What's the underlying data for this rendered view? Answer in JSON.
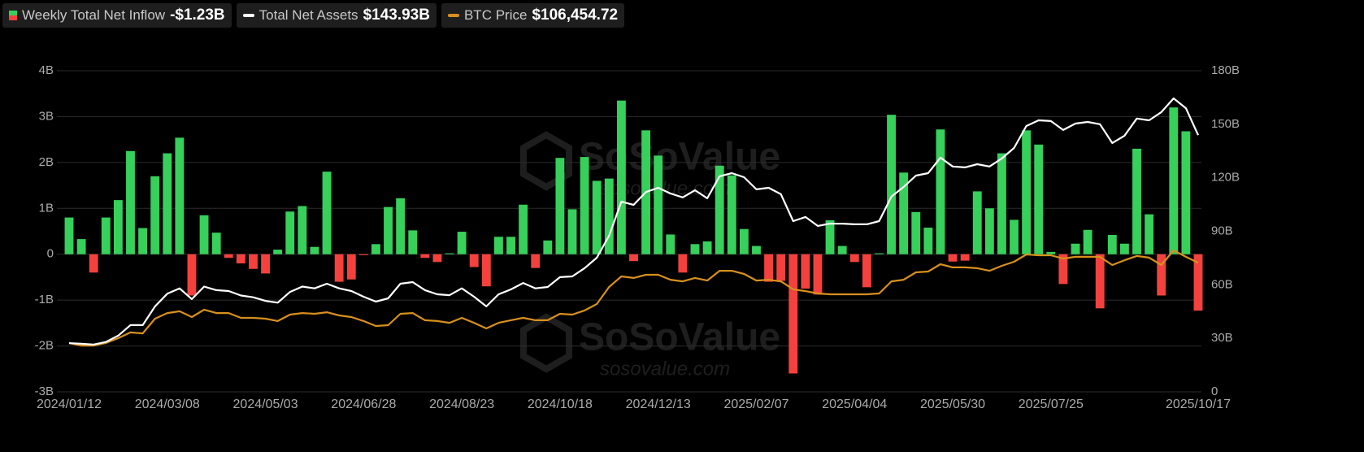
{
  "chart_data": {
    "type": "bar-line",
    "categories": [
      "2024/01/12",
      null,
      null,
      null,
      null,
      null,
      null,
      null,
      "2024/03/08",
      null,
      null,
      null,
      null,
      null,
      null,
      null,
      "2024/05/03",
      null,
      null,
      null,
      null,
      null,
      null,
      null,
      "2024/06/28",
      null,
      null,
      null,
      null,
      null,
      null,
      null,
      "2024/08/23",
      null,
      null,
      null,
      null,
      null,
      null,
      null,
      "2024/10/18",
      null,
      null,
      null,
      null,
      null,
      null,
      null,
      "2024/12/13",
      null,
      null,
      null,
      null,
      null,
      null,
      null,
      "2025/02/07",
      null,
      null,
      null,
      null,
      null,
      null,
      null,
      "2025/04/04",
      null,
      null,
      null,
      null,
      null,
      null,
      null,
      "2025/05/30",
      null,
      null,
      null,
      null,
      null,
      null,
      null,
      "2025/07/25",
      null,
      null,
      null,
      null,
      null,
      null,
      null,
      null,
      null,
      null,
      null,
      "2025/10/17"
    ],
    "series": [
      {
        "name": "Weekly Total Net Inflow",
        "current": "-$1.23B",
        "color": "#36d05a",
        "negative_color": "#f4413d",
        "values": [
          0.8,
          0.33,
          -0.4,
          0.8,
          1.18,
          2.25,
          0.57,
          1.7,
          2.2,
          2.54,
          -0.9,
          0.85,
          0.47,
          -0.08,
          -0.2,
          -0.32,
          -0.42,
          0.1,
          0.93,
          1.05,
          0.16,
          1.8,
          -0.6,
          -0.55,
          -0.02,
          0.22,
          1.03,
          1.22,
          0.52,
          -0.08,
          -0.17,
          0.02,
          0.49,
          -0.28,
          -0.7,
          0.38,
          0.38,
          1.08,
          -0.3,
          0.3,
          2.1,
          0.98,
          2.12,
          1.6,
          1.65,
          3.35,
          -0.15,
          2.7,
          2.15,
          0.43,
          -0.4,
          0.22,
          0.28,
          1.93,
          1.72,
          0.55,
          0.18,
          -0.6,
          -0.58,
          -2.6,
          -0.75,
          -0.88,
          0.74,
          0.18,
          -0.17,
          -0.72,
          0.02,
          3.04,
          1.78,
          0.92,
          0.58,
          2.72,
          -0.16,
          -0.14,
          1.37,
          1.0,
          2.2,
          0.75,
          2.7,
          2.39,
          0.05,
          -0.65,
          0.23,
          0.53,
          -1.18,
          0.42,
          0.23,
          2.3,
          0.87,
          -0.9,
          3.2,
          2.68,
          -1.23
        ]
      },
      {
        "name": "Total Net Assets",
        "current": "$143.93B",
        "color": "#ffffff",
        "axis": "y2",
        "values": [
          27.3,
          27,
          26.5,
          28,
          31.5,
          37.4,
          37.4,
          47.9,
          55,
          58,
          52,
          59,
          57,
          56.5,
          54,
          53,
          51,
          50,
          56,
          59,
          58,
          60.6,
          58,
          56.5,
          53.3,
          50.6,
          52.4,
          60.6,
          61.5,
          57,
          54.7,
          54.2,
          58,
          53.3,
          47.9,
          54.7,
          57.4,
          61,
          58,
          58.8,
          64.3,
          64.7,
          69.3,
          75.2,
          87.5,
          106.6,
          104.8,
          112,
          114.4,
          111.2,
          109,
          113,
          108.5,
          120.8,
          122.6,
          120.3,
          113.5,
          114.4,
          110.8,
          95.7,
          98,
          93,
          94.3,
          94.3,
          93.9,
          93.9,
          95.7,
          109.4,
          114.9,
          121.2,
          122.6,
          131.3,
          126.3,
          125.8,
          127.6,
          126.3,
          130.8,
          136.7,
          149,
          152.2,
          151.8,
          146.8,
          150.4,
          151.3,
          150,
          139.5,
          143.6,
          153.2,
          152.2,
          156.8,
          164.5,
          159,
          143.93
        ]
      },
      {
        "name": "BTC Price",
        "current": "$106,454.72",
        "color": "#d8901c",
        "axis": "y3",
        "values": [
          46500,
          44600,
          44600,
          46500,
          50100,
          54400,
          53700,
          64700,
          68900,
          70200,
          65900,
          71400,
          68900,
          68900,
          65300,
          65300,
          64700,
          62900,
          67700,
          68900,
          68300,
          69500,
          67100,
          65900,
          62900,
          59200,
          59800,
          68300,
          68900,
          63500,
          62900,
          61600,
          65300,
          61600,
          57400,
          61600,
          63500,
          65300,
          63500,
          63500,
          68300,
          67700,
          70800,
          75600,
          88400,
          96300,
          95100,
          97500,
          97500,
          93800,
          92600,
          95100,
          93200,
          100500,
          100500,
          98100,
          93200,
          93800,
          92600,
          86600,
          85300,
          83500,
          82900,
          82900,
          82900,
          82900,
          83500,
          92600,
          93800,
          99300,
          99900,
          105400,
          103000,
          103000,
          102400,
          100500,
          104200,
          107200,
          112700,
          112100,
          112100,
          109600,
          110900,
          110900,
          110900,
          104800,
          108400,
          111500,
          110300,
          104800,
          115700,
          110900,
          106454.72
        ]
      }
    ],
    "ylim": [
      -3,
      4
    ],
    "yticks": [
      {
        "value": -3,
        "label": "-3B"
      },
      {
        "value": -2,
        "label": "-2B"
      },
      {
        "value": -1,
        "label": "-1B"
      },
      0,
      {
        "value": 1,
        "label": "1B"
      },
      {
        "value": 2,
        "label": "2B"
      },
      {
        "value": 3,
        "label": "3B"
      },
      {
        "value": 4,
        "label": "4B"
      }
    ],
    "y2lim": [
      0,
      180
    ],
    "y2ticks": [
      0,
      {
        "value": 30,
        "label": "30B"
      },
      {
        "value": 60,
        "label": "60B"
      },
      {
        "value": 90,
        "label": "90B"
      },
      {
        "value": 120,
        "label": "120B"
      },
      {
        "value": 150,
        "label": "150B"
      },
      {
        "value": 180,
        "label": "180B"
      }
    ],
    "y3lim": [
      10000,
      250000
    ],
    "grid": true,
    "watermark": {
      "brand": "SoSoValue",
      "site": "sosovalue.com"
    }
  }
}
